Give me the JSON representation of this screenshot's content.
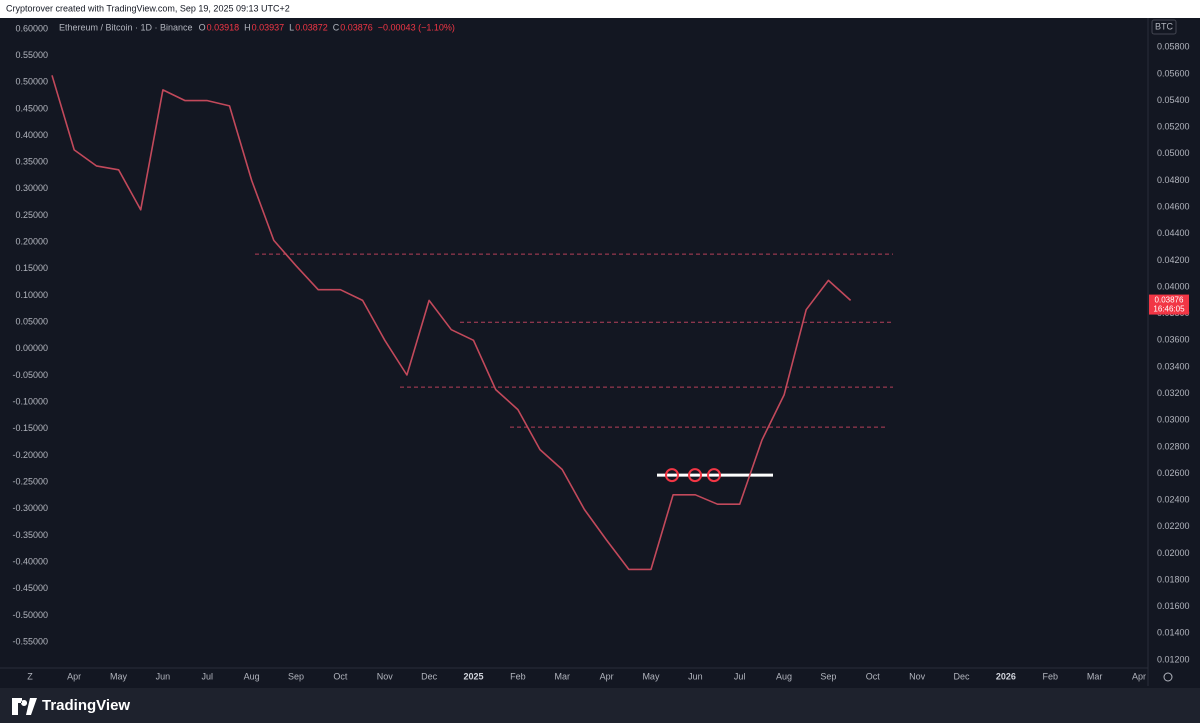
{
  "header": "Cryptorover created with TradingView.com, Sep 19, 2025 09:13 UTC+2",
  "footer": "TradingView",
  "chart_data": {
    "type": "line",
    "title": "Ethereum / Bitcoin · 1D · Binance",
    "ohlc": [
      {
        "label": "O",
        "value": 0.03918
      },
      {
        "label": "H",
        "value": 0.03937
      },
      {
        "label": "L",
        "value": 0.03872
      },
      {
        "label": "C",
        "value": 0.03876
      }
    ],
    "change": "−0.00043 (−1.10%)",
    "currency": "BTC",
    "last_price": 0.03876,
    "countdown": "16:46:05",
    "categories": [
      null,
      "Apr",
      null,
      "May",
      null,
      "Jun",
      null,
      "Jul",
      null,
      "Aug",
      null,
      "Sep",
      null,
      "Oct",
      null,
      "Nov",
      null,
      "Dec",
      null,
      "2025",
      null,
      "Feb",
      null,
      "Mar",
      null,
      "Apr",
      null,
      "May",
      null,
      "Jun",
      null,
      "Jul",
      null,
      "Aug",
      null,
      "Sep",
      null,
      "Oct",
      null,
      "Nov",
      null,
      "Dec",
      null,
      "2026",
      null,
      "Feb",
      null,
      "Mar",
      null,
      "Apr"
    ],
    "series": [
      {
        "name": "ETH/BTC",
        "color": "#c2495b",
        "axis": "y2",
        "values": [
          0.0559,
          0.0503,
          0.0491,
          0.0488,
          0.0458,
          0.0548,
          0.054,
          0.054,
          0.0536,
          0.048,
          0.0435,
          0.0416,
          0.0398,
          0.0398,
          0.039,
          0.036,
          0.0334,
          0.039,
          0.0368,
          0.036,
          0.0323,
          0.0308,
          0.0278,
          0.0263,
          0.0233,
          0.021,
          0.0188,
          0.0188,
          0.0244,
          0.0244,
          0.0237,
          0.0237,
          0.0285,
          0.0319,
          0.0383,
          0.0405,
          0.039,
          null,
          null,
          null,
          null,
          null,
          null,
          null,
          null,
          null,
          null,
          null,
          null,
          null
        ]
      }
    ],
    "levels": [
      {
        "value": 0.04247,
        "color": "#b5405a"
      },
      {
        "value": 0.03736,
        "color": "#b5405a"
      },
      {
        "value": 0.03249,
        "color": "#b5405a"
      },
      {
        "value": 0.02948,
        "color": "#b5405a"
      },
      {
        "value": 0.02588,
        "color": "#ffffff"
      }
    ],
    "ylim": [
      -0.5987,
      0.613
    ],
    "yticks": [
      {
        "value": 0.6,
        "label": "0.60000"
      },
      {
        "value": 0.55,
        "label": "0.55000"
      },
      {
        "value": 0.5,
        "label": "0.50000"
      },
      {
        "value": 0.45,
        "label": "0.45000"
      },
      {
        "value": 0.4,
        "label": "0.40000"
      },
      {
        "value": 0.35,
        "label": "0.35000"
      },
      {
        "value": 0.3,
        "label": "0.30000"
      },
      {
        "value": 0.25,
        "label": "0.25000"
      },
      {
        "value": 0.2,
        "label": "0.20000"
      },
      {
        "value": 0.15,
        "label": "0.15000"
      },
      {
        "value": 0.1,
        "label": "0.10000"
      },
      {
        "value": 0.05,
        "label": "0.05000"
      },
      {
        "value": 0,
        "label": "0.00000"
      },
      {
        "value": -0.05,
        "label": "-0.05000"
      },
      {
        "value": -0.1,
        "label": "-0.10000"
      },
      {
        "value": -0.15,
        "label": "-0.15000"
      },
      {
        "value": -0.2,
        "label": "-0.20000"
      },
      {
        "value": -0.25,
        "label": "-0.25000"
      },
      {
        "value": -0.3,
        "label": "-0.30000"
      },
      {
        "value": -0.35,
        "label": "-0.35000"
      },
      {
        "value": -0.4,
        "label": "-0.40000"
      },
      {
        "value": -0.45,
        "label": "-0.45000"
      },
      {
        "value": -0.5,
        "label": "-0.50000"
      },
      {
        "value": -0.55,
        "label": "-0.55000"
      }
    ],
    "y2lim": [
      0.0114,
      0.0599
    ],
    "y2ticks": [
      {
        "value": 0.058,
        "label": "0.05800"
      },
      {
        "value": 0.056,
        "label": "0.05600"
      },
      {
        "value": 0.054,
        "label": "0.05400"
      },
      {
        "value": 0.052,
        "label": "0.05200"
      },
      {
        "value": 0.05,
        "label": "0.05000"
      },
      {
        "value": 0.048,
        "label": "0.04800"
      },
      {
        "value": 0.046,
        "label": "0.04600"
      },
      {
        "value": 0.044,
        "label": "0.04400"
      },
      {
        "value": 0.042,
        "label": "0.04200"
      },
      {
        "value": 0.04,
        "label": "0.04000"
      },
      {
        "value": 0.038,
        "label": "0.03800"
      },
      {
        "value": 0.036,
        "label": "0.03600"
      },
      {
        "value": 0.034,
        "label": "0.03400"
      },
      {
        "value": 0.032,
        "label": "0.03200"
      },
      {
        "value": 0.03,
        "label": "0.03000"
      },
      {
        "value": 0.028,
        "label": "0.02800"
      },
      {
        "value": 0.026,
        "label": "0.02600"
      },
      {
        "value": 0.024,
        "label": "0.02400"
      },
      {
        "value": 0.022,
        "label": "0.02200"
      },
      {
        "value": 0.02,
        "label": "0.02000"
      },
      {
        "value": 0.018,
        "label": "0.01800"
      },
      {
        "value": 0.016,
        "label": "0.01600"
      },
      {
        "value": 0.014,
        "label": "0.01400"
      },
      {
        "value": 0.012,
        "label": "0.01200"
      }
    ],
    "grid": false
  }
}
